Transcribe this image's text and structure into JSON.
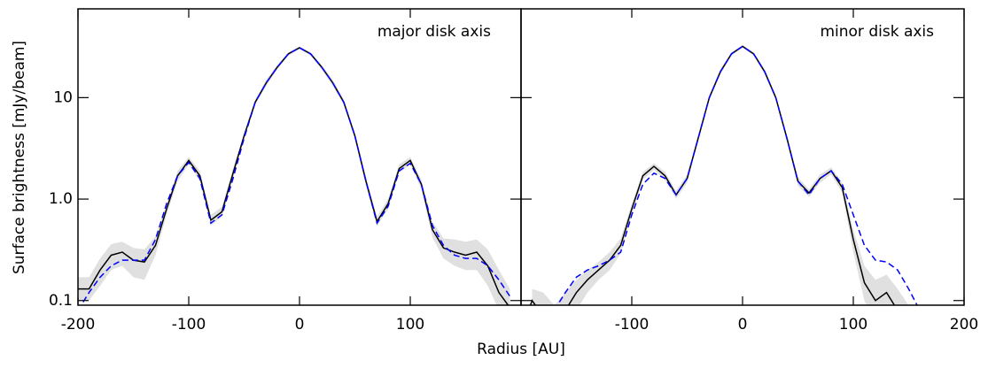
{
  "axis_labels": {
    "x": "Radius [AU]",
    "y": "Surface brightness [mJy/beam]"
  },
  "chart_data": [
    {
      "type": "line",
      "title": "major disk axis",
      "log_y": true,
      "ytick_labels": true,
      "xlim": [
        -200,
        200
      ],
      "ylim": [
        0.09,
        75
      ],
      "xticks": [
        -200,
        -100,
        0,
        100
      ],
      "yticks": [
        0.1,
        {
          "value": 1,
          "label": "1.0"
        },
        10
      ],
      "x": [
        -200,
        -190,
        -180,
        -170,
        -160,
        -150,
        -140,
        -130,
        -120,
        -110,
        -100,
        -90,
        -80,
        -70,
        -60,
        -50,
        -40,
        -30,
        -20,
        -10,
        0,
        10,
        20,
        30,
        40,
        50,
        60,
        70,
        80,
        90,
        100,
        110,
        120,
        130,
        140,
        150,
        160,
        170,
        180,
        190
      ],
      "band": {
        "color": "#e0e0e0",
        "lower": [
          0.1,
          0.1,
          0.14,
          0.2,
          0.22,
          0.17,
          0.16,
          0.28,
          0.7,
          1.5,
          2.2,
          1.5,
          0.55,
          0.67,
          1.6,
          3.9,
          8.5,
          13,
          19,
          26,
          30,
          26,
          19,
          13,
          8.5,
          3.9,
          1.35,
          0.54,
          0.8,
          1.8,
          2.2,
          1.25,
          0.42,
          0.26,
          0.22,
          0.2,
          0.2,
          0.14,
          0.08,
          0.06
        ],
        "upper": [
          0.17,
          0.17,
          0.26,
          0.36,
          0.38,
          0.33,
          0.32,
          0.43,
          0.9,
          1.9,
          2.6,
          1.9,
          0.7,
          0.84,
          2.0,
          4.5,
          9.5,
          15,
          21,
          28,
          32,
          28,
          21,
          15,
          9.5,
          4.5,
          1.65,
          0.67,
          1.0,
          2.2,
          2.6,
          1.55,
          0.6,
          0.41,
          0.4,
          0.38,
          0.4,
          0.32,
          0.2,
          0.13
        ]
      },
      "series": [
        {
          "color": "#000000",
          "dash": false,
          "values": [
            0.13,
            0.13,
            0.2,
            0.28,
            0.3,
            0.25,
            0.24,
            0.35,
            0.8,
            1.7,
            2.4,
            1.7,
            0.62,
            0.75,
            1.8,
            4.2,
            9,
            14,
            20,
            27,
            31,
            27,
            20,
            14,
            9,
            4.2,
            1.5,
            0.6,
            0.9,
            2.0,
            2.4,
            1.4,
            0.5,
            0.33,
            0.3,
            0.28,
            0.3,
            0.22,
            0.12,
            0.085
          ]
        },
        {
          "color": "#0000ff",
          "dash": true,
          "values": [
            0.08,
            0.12,
            0.17,
            0.22,
            0.25,
            0.25,
            0.25,
            0.4,
            0.9,
            1.7,
            2.3,
            1.6,
            0.58,
            0.7,
            1.6,
            4.0,
            9,
            14,
            20,
            27,
            31,
            27,
            20,
            14,
            9,
            4.2,
            1.5,
            0.58,
            0.85,
            1.9,
            2.25,
            1.4,
            0.55,
            0.35,
            0.28,
            0.26,
            0.26,
            0.22,
            0.16,
            0.11
          ]
        }
      ]
    },
    {
      "type": "line",
      "title": "minor disk axis",
      "log_y": true,
      "ytick_labels": false,
      "xlim": [
        -200,
        200
      ],
      "ylim": [
        0.09,
        75
      ],
      "xticks": [
        -100,
        0,
        100,
        200
      ],
      "yticks": [
        0.1,
        {
          "value": 1,
          "label": "1.0"
        },
        10
      ],
      "x": [
        -200,
        -190,
        -180,
        -170,
        -160,
        -150,
        -140,
        -130,
        -120,
        -110,
        -100,
        -90,
        -80,
        -70,
        -60,
        -50,
        -40,
        -30,
        -20,
        -10,
        0,
        10,
        20,
        30,
        40,
        50,
        60,
        70,
        80,
        90,
        100,
        110,
        120,
        130,
        140,
        150,
        160,
        170,
        180,
        190
      ],
      "band": {
        "color": "#e0e0e0",
        "lower": [
          null,
          0.05,
          0.05,
          0.04,
          0.05,
          0.08,
          0.12,
          0.16,
          0.2,
          0.29,
          0.7,
          1.55,
          1.95,
          1.55,
          1.0,
          1.45,
          3.8,
          9.5,
          17,
          26,
          31,
          26,
          17,
          9.5,
          3.8,
          1.35,
          1.05,
          1.45,
          1.75,
          1.15,
          0.3,
          0.1,
          0.06,
          0.07,
          0.05,
          0.04,
          null,
          null,
          null,
          null
        ],
        "upper": [
          null,
          0.13,
          0.12,
          0.09,
          0.12,
          0.16,
          0.2,
          0.24,
          0.3,
          0.41,
          0.9,
          1.85,
          2.25,
          1.85,
          1.2,
          1.75,
          4.2,
          10.5,
          19,
          28,
          33,
          28,
          19,
          10.5,
          4.2,
          1.65,
          1.25,
          1.75,
          2.05,
          1.45,
          0.5,
          0.22,
          0.16,
          0.18,
          0.13,
          0.09,
          null,
          null,
          null,
          null
        ]
      },
      "series": [
        {
          "color": "#000000",
          "dash": false,
          "values": [
            0.05,
            0.1,
            0.07,
            0.05,
            0.08,
            0.12,
            0.16,
            0.2,
            0.25,
            0.35,
            0.8,
            1.7,
            2.1,
            1.7,
            1.1,
            1.6,
            4,
            10,
            18,
            27,
            32,
            27,
            18,
            10,
            4,
            1.5,
            1.15,
            1.6,
            1.9,
            1.3,
            0.4,
            0.15,
            0.1,
            0.12,
            0.08,
            0.05,
            null,
            null,
            null,
            null
          ]
        },
        {
          "color": "#0000ff",
          "dash": true,
          "values": [
            null,
            null,
            null,
            0.08,
            0.12,
            0.17,
            0.2,
            0.22,
            0.25,
            0.3,
            0.7,
            1.4,
            1.8,
            1.6,
            1.1,
            1.6,
            4,
            10,
            18,
            27,
            32,
            27,
            18,
            10,
            4,
            1.5,
            1.1,
            1.6,
            1.9,
            1.4,
            0.7,
            0.35,
            0.25,
            0.24,
            0.2,
            0.13,
            0.08,
            null,
            null,
            null
          ]
        }
      ]
    }
  ]
}
